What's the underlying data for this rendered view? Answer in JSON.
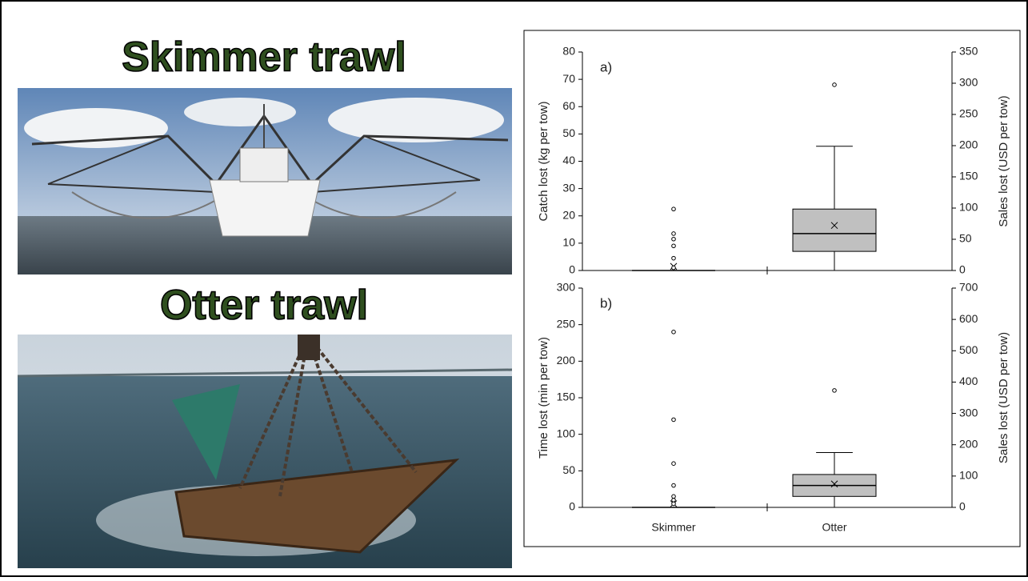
{
  "slide": {
    "left_titles": [
      "Skimmer trawl",
      "Otter trawl"
    ]
  },
  "chart_data": [
    {
      "type": "box",
      "panel_label": "a)",
      "y_label": "Catch lost (kg per tow)",
      "y2_label": "Sales lost (USD per tow)",
      "categories": [
        null,
        null
      ],
      "boxes": [
        {
          "min": 0,
          "q1": 0,
          "median": 0,
          "q3": 0,
          "max": 0,
          "mean": 1.5,
          "outliers": [
            22.5,
            13.5,
            11.5,
            9,
            4.5,
            1
          ]
        },
        {
          "min": 0,
          "q1": 7,
          "median": 13.5,
          "q3": 22.5,
          "max": 45.5,
          "mean": 16.5,
          "outliers": [
            68
          ]
        }
      ],
      "color": "#c0c0c0",
      "ylim": [
        0,
        80
      ],
      "yticks": [
        0,
        10,
        20,
        30,
        40,
        50,
        60,
        70,
        80
      ],
      "y2lim": [
        0,
        350
      ],
      "y2ticks": [
        0,
        50,
        100,
        150,
        200,
        250,
        300,
        350
      ]
    },
    {
      "type": "box",
      "panel_label": "b)",
      "y_label": "Time lost (min per tow)",
      "y2_label": "Sales lost (USD per tow)",
      "categories": [
        "Skimmer",
        "Otter"
      ],
      "boxes": [
        {
          "min": 0,
          "q1": 0,
          "median": 0,
          "q3": 0,
          "max": 0,
          "mean": 5,
          "outliers": [
            240,
            120,
            60,
            30,
            15,
            10,
            5
          ]
        },
        {
          "min": 0,
          "q1": 15,
          "median": 30,
          "q3": 45,
          "max": 75,
          "mean": 32,
          "outliers": [
            160
          ]
        }
      ],
      "color": "#c0c0c0",
      "ylim": [
        0,
        300
      ],
      "yticks": [
        0,
        50,
        100,
        150,
        200,
        250,
        300
      ],
      "y2lim": [
        0,
        700
      ],
      "y2ticks": [
        0,
        100,
        200,
        300,
        400,
        500,
        600,
        700
      ]
    }
  ]
}
